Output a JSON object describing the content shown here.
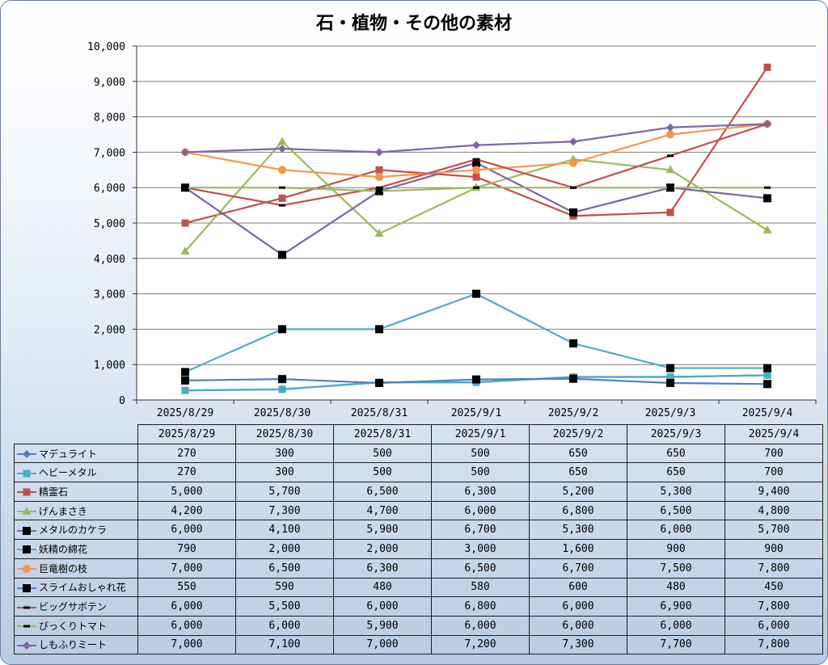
{
  "chart_data": {
    "type": "line",
    "title": "石・植物・その他の素材",
    "xlabel": "",
    "ylabel": "",
    "ylim": [
      0,
      10000
    ],
    "yticks": [
      "0",
      "1,000",
      "2,000",
      "3,000",
      "4,000",
      "5,000",
      "6,000",
      "7,000",
      "8,000",
      "9,000",
      "10,000"
    ],
    "grid": true,
    "legend": "data table below chart",
    "categories": [
      "2025/8/29",
      "2025/8/30",
      "2025/8/31",
      "2025/9/1",
      "2025/9/2",
      "2025/9/3",
      "2025/9/4"
    ],
    "series": [
      {
        "name": "マデュライト",
        "color": "#4f81bd",
        "marker": "diamond",
        "values": [
          270,
          300,
          500,
          500,
          650,
          650,
          700
        ],
        "labels": [
          "270",
          "300",
          "500",
          "500",
          "650",
          "650",
          "700"
        ]
      },
      {
        "name": "ヘビーメタル",
        "color": "#4bacc6",
        "marker": "square",
        "values": [
          270,
          300,
          500,
          500,
          650,
          650,
          700
        ],
        "labels": [
          "270",
          "300",
          "500",
          "500",
          "650",
          "650",
          "700"
        ]
      },
      {
        "name": "精霊石",
        "color": "#c0504d",
        "marker": "square",
        "values": [
          5000,
          5700,
          6500,
          6300,
          5200,
          5300,
          9400
        ],
        "labels": [
          "5,000",
          "5,700",
          "6,500",
          "6,300",
          "5,200",
          "5,300",
          "9,400"
        ]
      },
      {
        "name": "げんまさき",
        "color": "#9bbb59",
        "marker": "triangle",
        "values": [
          4200,
          7300,
          4700,
          6000,
          6800,
          6500,
          4800
        ],
        "labels": [
          "4,200",
          "7,300",
          "4,700",
          "6,000",
          "6,800",
          "6,500",
          "4,800"
        ]
      },
      {
        "name": "メタルのカケラ",
        "color": "#8064a2",
        "marker": "blacksquare",
        "values": [
          6000,
          4100,
          5900,
          6700,
          5300,
          6000,
          5700
        ],
        "labels": [
          "6,000",
          "4,100",
          "5,900",
          "6,700",
          "5,300",
          "6,000",
          "5,700"
        ]
      },
      {
        "name": "妖精の綿花",
        "color": "#4bacc6",
        "marker": "blacksquare",
        "values": [
          790,
          2000,
          2000,
          3000,
          1600,
          900,
          900
        ],
        "labels": [
          "790",
          "2,000",
          "2,000",
          "3,000",
          "1,600",
          "900",
          "900"
        ]
      },
      {
        "name": "巨竜樹の枝",
        "color": "#f79646",
        "marker": "circle",
        "values": [
          7000,
          6500,
          6300,
          6500,
          6700,
          7500,
          7800
        ],
        "labels": [
          "7,000",
          "6,500",
          "6,300",
          "6,500",
          "6,700",
          "7,500",
          "7,800"
        ]
      },
      {
        "name": "スライムおしゃれ花",
        "color": "#4f81bd",
        "marker": "blacksquare",
        "values": [
          550,
          590,
          480,
          580,
          600,
          480,
          450
        ],
        "labels": [
          "550",
          "590",
          "480",
          "580",
          "600",
          "480",
          "450"
        ]
      },
      {
        "name": "ビッグサボテン",
        "color": "#c0504d",
        "marker": "dash",
        "values": [
          6000,
          5500,
          6000,
          6800,
          6000,
          6900,
          7800
        ],
        "labels": [
          "6,000",
          "5,500",
          "6,000",
          "6,800",
          "6,000",
          "6,900",
          "7,800"
        ]
      },
      {
        "name": "びっくりトマト",
        "color": "#9bbb59",
        "marker": "dash",
        "values": [
          6000,
          6000,
          5900,
          6000,
          6000,
          6000,
          6000
        ],
        "labels": [
          "6,000",
          "6,000",
          "5,900",
          "6,000",
          "6,000",
          "6,000",
          "6,000"
        ]
      },
      {
        "name": "しもふりミート",
        "color": "#8064a2",
        "marker": "diamond",
        "values": [
          7000,
          7100,
          7000,
          7200,
          7300,
          7700,
          7800
        ],
        "labels": [
          "7,000",
          "7,100",
          "7,000",
          "7,200",
          "7,300",
          "7,700",
          "7,800"
        ]
      }
    ]
  }
}
